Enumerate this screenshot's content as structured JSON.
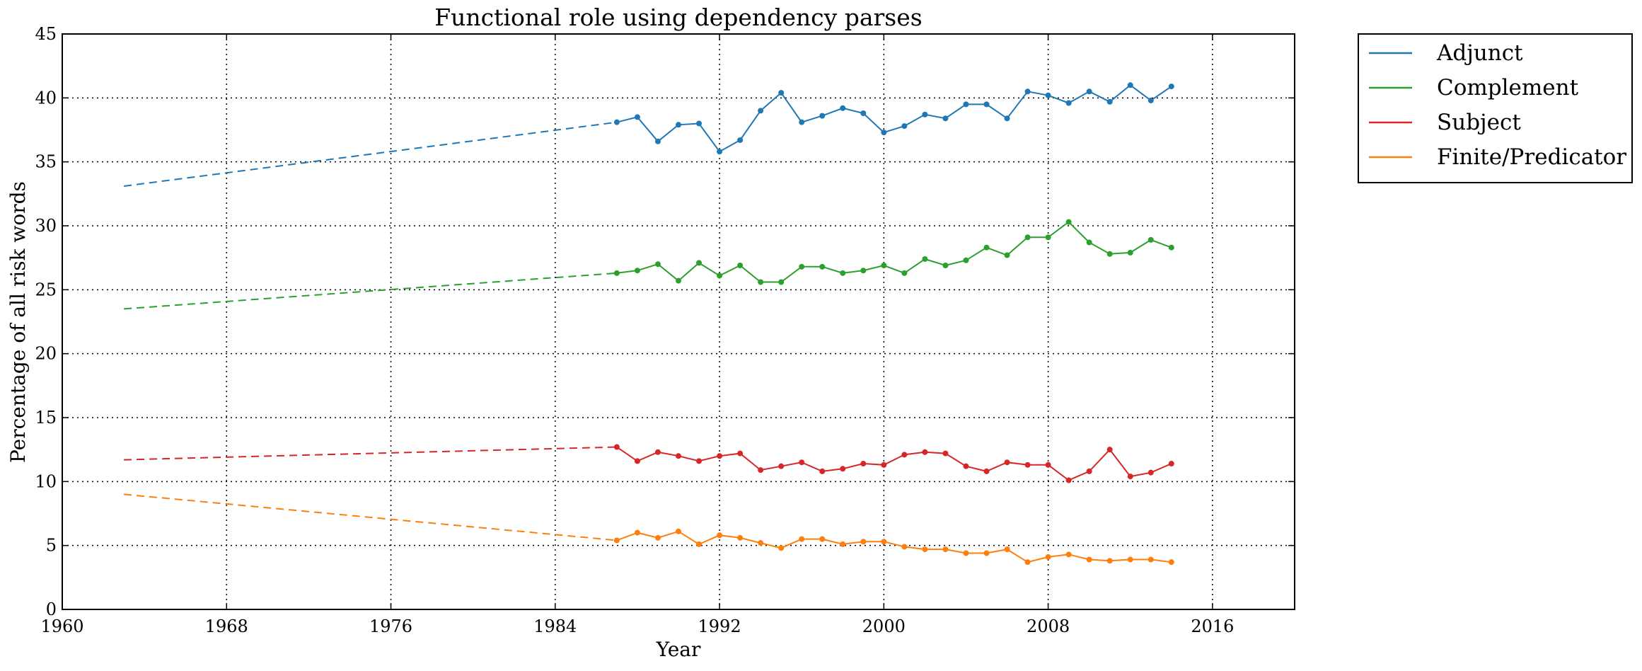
{
  "chart_data": {
    "type": "line",
    "title": "Functional role using dependency parses",
    "xlabel": "Year",
    "ylabel": "Percentage of all risk words",
    "xlim": [
      1960,
      2020
    ],
    "ylim": [
      0,
      45
    ],
    "xticks": [
      "1960",
      "1968",
      "1976",
      "1984",
      "1992",
      "2000",
      "2008",
      "2016"
    ],
    "yticks": [
      "0",
      "5",
      "10",
      "15",
      "20",
      "25",
      "30",
      "35",
      "40",
      "45"
    ],
    "grid": true,
    "legend_position": "outside-top-right",
    "x": [
      1987,
      1988,
      1989,
      1990,
      1991,
      1992,
      1993,
      1994,
      1995,
      1996,
      1997,
      1998,
      1999,
      2000,
      2001,
      2002,
      2003,
      2004,
      2005,
      2006,
      2007,
      2008,
      2009,
      2010,
      2011,
      2012,
      2013,
      2014
    ],
    "extrapolation": {
      "x": [
        1963,
        1987
      ],
      "style": "dashed"
    },
    "series": [
      {
        "name": "Adjunct",
        "color": "#1f77b4",
        "extrapolation_start": 33.1,
        "values": [
          38.1,
          38.5,
          36.6,
          37.9,
          38.0,
          35.8,
          36.7,
          39.0,
          40.4,
          38.1,
          38.6,
          39.2,
          38.8,
          37.3,
          37.8,
          38.7,
          38.4,
          39.5,
          39.5,
          38.4,
          40.5,
          40.2,
          39.6,
          40.5,
          39.7,
          41.0,
          39.8,
          40.9
        ]
      },
      {
        "name": "Complement",
        "color": "#2ca02c",
        "extrapolation_start": 23.5,
        "values": [
          26.3,
          26.5,
          27.0,
          25.7,
          27.1,
          26.1,
          26.9,
          25.6,
          25.6,
          26.8,
          26.8,
          26.3,
          26.5,
          26.9,
          26.3,
          27.4,
          26.9,
          27.3,
          28.3,
          27.7,
          29.1,
          29.1,
          30.3,
          28.7,
          27.8,
          27.9,
          28.9,
          28.3
        ]
      },
      {
        "name": "Subject",
        "color": "#d62728",
        "extrapolation_start": 11.7,
        "values": [
          12.7,
          11.6,
          12.3,
          12.0,
          11.6,
          12.0,
          12.2,
          10.9,
          11.2,
          11.5,
          10.8,
          11.0,
          11.4,
          11.3,
          12.1,
          12.3,
          12.2,
          11.2,
          10.8,
          11.5,
          11.3,
          11.3,
          10.1,
          10.8,
          12.5,
          10.4,
          10.7,
          11.4
        ]
      },
      {
        "name": "Finite/Predicator",
        "color": "#ff7f0e",
        "extrapolation_start": 9.0,
        "values": [
          5.4,
          6.0,
          5.6,
          6.1,
          5.1,
          5.8,
          5.6,
          5.2,
          4.8,
          5.5,
          5.5,
          5.1,
          5.3,
          5.3,
          4.9,
          4.7,
          4.7,
          4.4,
          4.4,
          4.7,
          3.7,
          4.1,
          4.3,
          3.9,
          3.8,
          3.9,
          3.9,
          3.7
        ]
      }
    ]
  }
}
